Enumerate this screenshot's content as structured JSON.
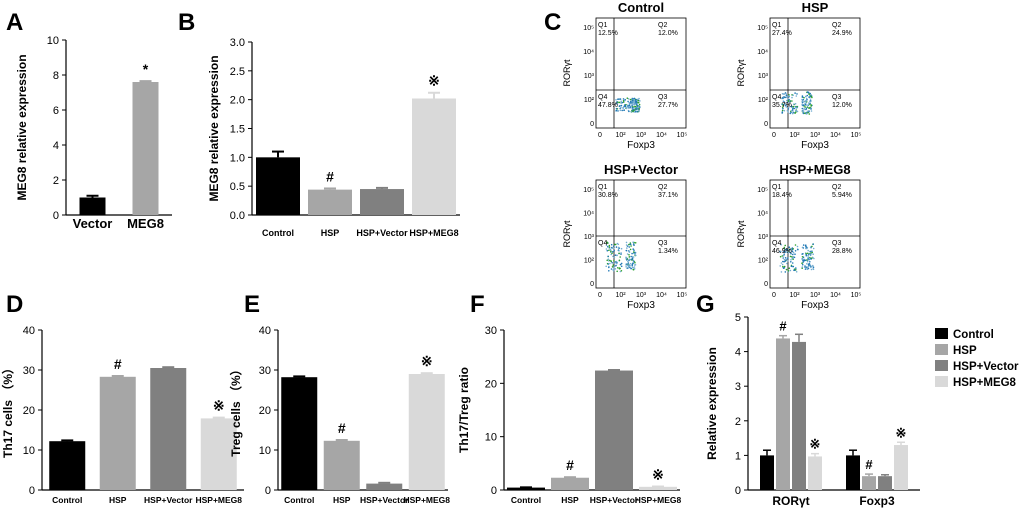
{
  "colors": {
    "black": "#000000",
    "mid_gray": "#a6a6a6",
    "dark_gray": "#808080",
    "light_gray": "#d9d9d9",
    "flow_dot": "#1f78b4"
  },
  "chart_data": [
    {
      "panel": "A",
      "type": "bar",
      "ylabel": "MEG8 relative expression",
      "categories": [
        "Vector",
        "MEG8"
      ],
      "values": [
        1.0,
        7.6
      ],
      "errors": [
        0.1,
        0.05
      ],
      "annotations": [
        "",
        "*"
      ],
      "ylim": [
        0,
        10
      ],
      "yticks": [
        "0",
        "2",
        "4",
        "6",
        "8",
        "10"
      ]
    },
    {
      "panel": "B",
      "type": "bar",
      "ylabel": "MEG8 relative expression",
      "categories": [
        "Control",
        "HSP",
        "HSP+Vector",
        "HSP+MEG8"
      ],
      "values": [
        1.0,
        0.44,
        0.45,
        2.02
      ],
      "errors": [
        0.1,
        0.02,
        0.02,
        0.1
      ],
      "annotations": [
        "",
        "#",
        "",
        "※"
      ],
      "ylim": [
        0,
        3.0
      ],
      "yticks": [
        "0.0",
        "0.5",
        "1.0",
        "1.5",
        "2.0",
        "2.5",
        "3.0"
      ]
    },
    {
      "panel": "D",
      "type": "bar",
      "ylabel": "Th17 cells （%）",
      "categories": [
        "Control",
        "HSP",
        "HSP+Vector",
        "HSP+MEG8"
      ],
      "values": [
        12.2,
        28.3,
        30.5,
        17.9
      ],
      "errors": [
        0.2,
        0.2,
        0.2,
        0.2
      ],
      "annotations": [
        "",
        "#",
        "",
        "※"
      ],
      "ylim": [
        0,
        40
      ],
      "yticks": [
        "0",
        "10",
        "20",
        "30",
        "40"
      ]
    },
    {
      "panel": "E",
      "type": "bar",
      "ylabel": "Treg cells （%）",
      "categories": [
        "Control",
        "HSP",
        "HSP+Vector",
        "HSP+MEG8"
      ],
      "values": [
        28.2,
        12.3,
        1.6,
        29.0
      ],
      "errors": [
        0.2,
        0.2,
        0.2,
        0.2
      ],
      "annotations": [
        "",
        "#",
        "",
        "※"
      ],
      "ylim": [
        0,
        40
      ],
      "yticks": [
        "0",
        "10",
        "20",
        "30",
        "40"
      ]
    },
    {
      "panel": "F",
      "type": "bar",
      "ylabel": "Th17/Treg ratio",
      "categories": [
        "Control",
        "HSP",
        "HSP+Vector",
        "HSP+MEG8"
      ],
      "values": [
        0.45,
        2.3,
        22.4,
        0.6
      ],
      "errors": [
        0.05,
        0.1,
        0.1,
        0.05
      ],
      "annotations": [
        "",
        "#",
        "",
        "※"
      ],
      "ylim": [
        0,
        30
      ],
      "yticks": [
        "0",
        "10",
        "20",
        "30"
      ]
    },
    {
      "panel": "G",
      "type": "bar",
      "ylabel": "Relative expression",
      "categories": [
        "RORγt",
        "Foxp3"
      ],
      "legend_position": "top-right",
      "series": [
        {
          "name": "Control",
          "values": [
            1.0,
            1.0
          ],
          "errors": [
            0.15,
            0.15
          ],
          "annotations": [
            "",
            ""
          ]
        },
        {
          "name": "HSP",
          "values": [
            4.38,
            0.4
          ],
          "errors": [
            0.08,
            0.06
          ],
          "annotations": [
            "#",
            "#"
          ]
        },
        {
          "name": "HSP+Vector",
          "values": [
            4.28,
            0.4
          ],
          "errors": [
            0.22,
            0.04
          ],
          "annotations": [
            "",
            ""
          ]
        },
        {
          "name": "HSP+MEG8",
          "values": [
            0.97,
            1.3
          ],
          "errors": [
            0.08,
            0.08
          ],
          "annotations": [
            "※",
            "※"
          ]
        }
      ],
      "ylim": [
        0,
        5
      ],
      "yticks": [
        "0",
        "1",
        "2",
        "3",
        "4",
        "5"
      ]
    }
  ],
  "panel_letters": [
    "A",
    "B",
    "C",
    "D",
    "E",
    "F",
    "G"
  ],
  "flow_panels": [
    {
      "title": "Control",
      "q1": "12.5%",
      "q2": "12.0%",
      "q3": "27.7%",
      "q4": "47.8%"
    },
    {
      "title": "HSP",
      "q1": "27.4%",
      "q2": "24.9%",
      "q3": "12.0%",
      "q4": "35.7%"
    },
    {
      "title": "HSP+Vector",
      "q1": "30.8%",
      "q2": "37.1%",
      "q3": "1.34%",
      "q4": ""
    },
    {
      "title": "HSP+MEG8",
      "q1": "18.4%",
      "q2": "5.94%",
      "q3": "28.8%",
      "q4": "46.9%"
    }
  ],
  "flow_axes": {
    "ylabel": "RORγt",
    "xlabel": "Foxp3",
    "quad_names": [
      "Q1",
      "Q2",
      "Q3",
      "Q4"
    ],
    "yticks": [
      "10⁵",
      "10⁴",
      "10³",
      "10²",
      "0"
    ],
    "xticks": [
      "0",
      "10²",
      "10³",
      "10⁴",
      "10⁵"
    ]
  }
}
